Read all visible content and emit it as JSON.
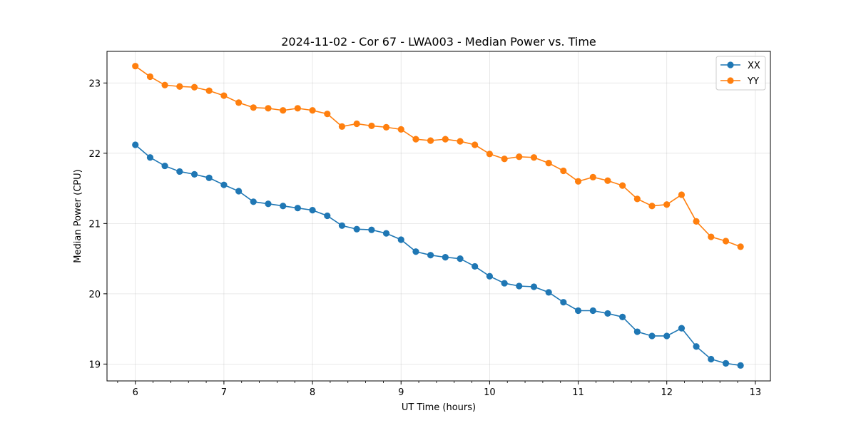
{
  "chart_data": {
    "type": "line",
    "title": "2024-11-02 - Cor 67 - LWA003 - Median Power vs. Time",
    "xlabel": "UT Time (hours)",
    "ylabel": "Median Power (CPU)",
    "xlim": [
      5.68,
      13.17
    ],
    "ylim": [
      18.76,
      23.45
    ],
    "xticks": [
      6,
      7,
      8,
      9,
      10,
      11,
      12,
      13
    ],
    "xtick_labels": [
      "6",
      "7",
      "8",
      "9",
      "10",
      "11",
      "12",
      "13"
    ],
    "yticks": [
      19,
      20,
      21,
      22,
      23
    ],
    "ytick_labels": [
      "19",
      "20",
      "21",
      "22",
      "23"
    ],
    "grid": true,
    "legend": "top-right",
    "x": [
      6.0,
      6.167,
      6.333,
      6.5,
      6.667,
      6.833,
      7.0,
      7.167,
      7.333,
      7.5,
      7.667,
      7.833,
      8.0,
      8.167,
      8.333,
      8.5,
      8.667,
      8.833,
      9.0,
      9.167,
      9.333,
      9.5,
      9.667,
      9.833,
      10.0,
      10.167,
      10.333,
      10.5,
      10.667,
      10.833,
      11.0,
      11.167,
      11.333,
      11.5,
      11.667,
      11.833,
      12.0,
      12.167,
      12.333,
      12.5,
      12.667,
      12.833
    ],
    "series": [
      {
        "name": "XX",
        "color": "#1f77b4",
        "values": [
          22.12,
          21.94,
          21.82,
          21.74,
          21.7,
          21.65,
          21.55,
          21.46,
          21.31,
          21.28,
          21.25,
          21.22,
          21.19,
          21.11,
          20.97,
          20.92,
          20.91,
          20.86,
          20.77,
          20.6,
          20.55,
          20.52,
          20.5,
          20.39,
          20.25,
          20.15,
          20.11,
          20.1,
          20.02,
          19.88,
          19.76,
          19.76,
          19.72,
          19.67,
          19.46,
          19.4,
          19.4,
          19.51,
          19.25,
          19.07,
          19.01,
          18.98
        ]
      },
      {
        "name": "YY",
        "color": "#ff7f0e",
        "values": [
          23.24,
          23.09,
          22.97,
          22.95,
          22.94,
          22.89,
          22.82,
          22.72,
          22.65,
          22.64,
          22.61,
          22.64,
          22.61,
          22.56,
          22.38,
          22.42,
          22.39,
          22.37,
          22.34,
          22.2,
          22.18,
          22.2,
          22.17,
          22.12,
          21.99,
          21.92,
          21.95,
          21.94,
          21.86,
          21.75,
          21.6,
          21.66,
          21.61,
          21.54,
          21.35,
          21.25,
          21.27,
          21.41,
          21.03,
          20.81,
          20.75,
          20.67
        ]
      }
    ]
  }
}
